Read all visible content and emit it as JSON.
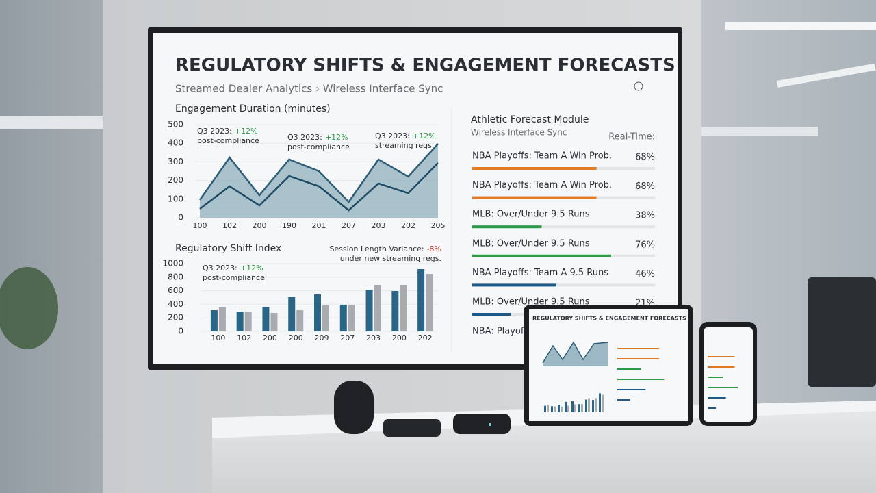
{
  "screen": {
    "title": "REGULATORY SHIFTS & ENGAGEMENT FORECASTS",
    "subtitle": "Streamed Dealer Analytics › Wireless Interface Sync"
  },
  "chart_data": [
    {
      "type": "area",
      "title": "Engagement Duration (minutes)",
      "categories": [
        "100",
        "102",
        "200",
        "190",
        "201",
        "207",
        "203",
        "202",
        "205"
      ],
      "series": [
        {
          "color": "#2e5d77",
          "values": [
            96,
            323,
            121,
            313,
            250,
            85,
            313,
            221,
            397
          ]
        },
        {
          "color": "#1f4a63",
          "values": [
            48,
            169,
            66,
            224,
            169,
            40,
            184,
            132,
            294
          ]
        }
      ],
      "ylim": [
        0,
        500
      ],
      "yticks": [
        0,
        100,
        200,
        300,
        400,
        500
      ],
      "annotations": [
        {
          "label": "Q3 2023:",
          "change": "+12%",
          "note": "post-compliance"
        },
        {
          "label": "Q3 2023:",
          "change": "+12%",
          "note": "post-compliance"
        },
        {
          "label": "Q3 2023:",
          "change": "+12%",
          "note": "streaming regs"
        }
      ]
    },
    {
      "type": "bar",
      "title": "Regulatory Shift Index",
      "categories": [
        "100",
        "102",
        "200",
        "200",
        "209",
        "207",
        "203",
        "200",
        "202"
      ],
      "series": [
        {
          "color": "#2b6585",
          "values": [
            313,
            293,
            364,
            505,
            545,
            394,
            616,
            596,
            919
          ]
        },
        {
          "color": "#a8acb1",
          "values": [
            364,
            283,
            273,
            313,
            384,
            394,
            687,
            687,
            848
          ]
        }
      ],
      "ylim": [
        0,
        1000
      ],
      "yticks": [
        0,
        200,
        400,
        600,
        800,
        1000
      ],
      "annotations": [
        {
          "label": "Q3 2023:",
          "change": "+12%",
          "note": "post-compliance"
        },
        {
          "label": "Session Length Variance:",
          "change": "-8%",
          "note": "under new streaming regs."
        }
      ]
    }
  ],
  "forecast_module": {
    "title": "Athletic Forecast Module",
    "subtitle": "Wireless Interface Sync",
    "status": "Real-Time:",
    "rows": [
      {
        "label": "NBA Playoffs: Team A Win Prob.",
        "value": 68,
        "value_label": "68%",
        "color": "#e07b24"
      },
      {
        "label": "NBA Playoffs: Team A Win Prob.",
        "value": 68,
        "value_label": "68%",
        "color": "#e07b24"
      },
      {
        "label": "MLB: Over/Under 9.5 Runs",
        "value": 38,
        "value_label": "38%",
        "color": "#2e9a45"
      },
      {
        "label": "MLB: Over/Under 9.5 Runs",
        "value": 76,
        "value_label": "76%",
        "color": "#2e9a45"
      },
      {
        "label": "NBA Playoffs: Team A 9.5 Runs",
        "value": 46,
        "value_label": "46%",
        "color": "#1f5a86"
      },
      {
        "label": "MLB: Over/Under 9.5 Runs",
        "value": 21,
        "value_label": "21%",
        "color": "#1f5a86"
      }
    ],
    "footer": "NBA: Playoffs:"
  }
}
